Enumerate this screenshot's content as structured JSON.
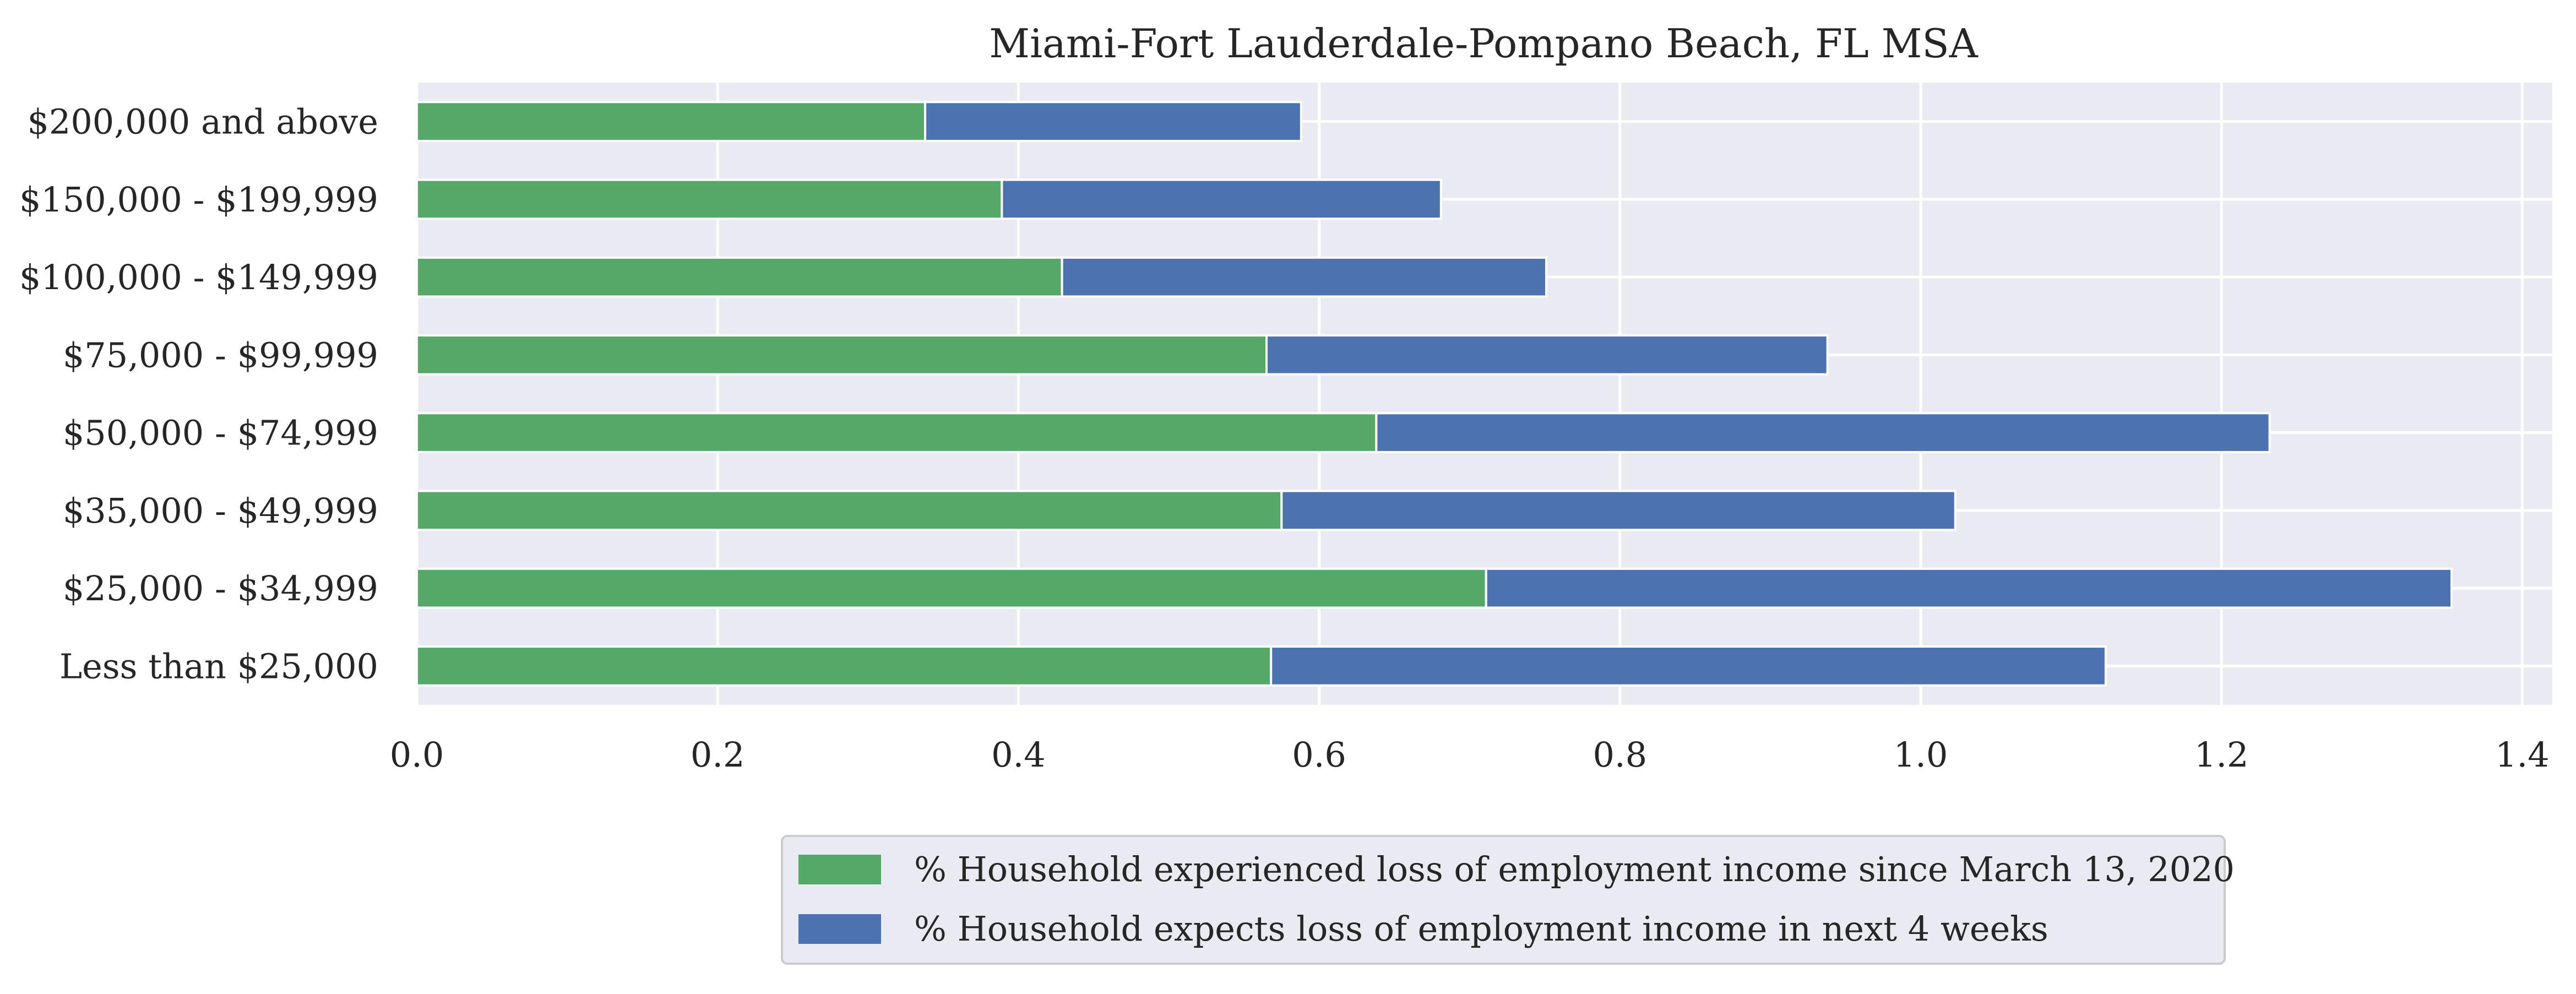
{
  "chart_data": {
    "type": "bar",
    "orientation": "horizontal",
    "stacked": true,
    "title": "Miami-Fort Lauderdale-Pompano Beach, FL MSA",
    "xlabel": "",
    "ylabel": "",
    "xlim": [
      0,
      1.42
    ],
    "x_ticks": [
      "0.0",
      "0.2",
      "0.4",
      "0.6",
      "0.8",
      "1.0",
      "1.2",
      "1.4"
    ],
    "x_tick_values": [
      0,
      0.2,
      0.4,
      0.6,
      0.8,
      1.0,
      1.2,
      1.4
    ],
    "grid": true,
    "legend_position": "bottom-center",
    "categories": [
      "$200,000 and above",
      "$150,000 - $199,999",
      "$100,000 - $149,999",
      "$75,000 - $99,999",
      "$50,000 - $74,999",
      "$35,000 - $49,999",
      "$25,000 - $34,999",
      "Less than $25,000"
    ],
    "series": [
      {
        "name": "% Household experienced loss of employment income since March 13, 2020",
        "color": "#55a868",
        "values": [
          0.338,
          0.389,
          0.429,
          0.565,
          0.638,
          0.575,
          0.711,
          0.568
        ]
      },
      {
        "name": "% Household expects loss of employment income in next 4 weeks",
        "color": "#4c72b0",
        "values": [
          0.25,
          0.292,
          0.322,
          0.373,
          0.594,
          0.448,
          0.642,
          0.555
        ]
      }
    ],
    "colors": {
      "plot_background": "#eaeaf2",
      "grid": "#ffffff",
      "text": "#262626"
    }
  }
}
